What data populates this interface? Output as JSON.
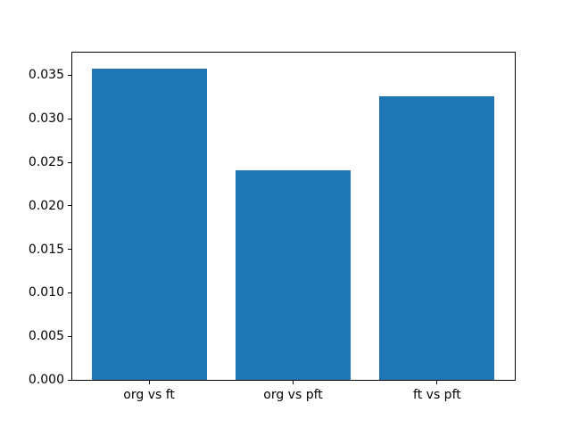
{
  "figure": {
    "background": "#ffffff",
    "spine_color": "#000000",
    "tick_color": "#000000",
    "text_color": "#000000"
  },
  "chart_data": {
    "type": "bar",
    "title": "",
    "xlabel": "",
    "ylabel": "",
    "categories": [
      "org vs ft",
      "org vs pft",
      "ft vs pft"
    ],
    "values": [
      0.0358,
      0.0241,
      0.0326
    ],
    "bar_color": "#1f77b4",
    "bar_width": 0.8,
    "xlim": [
      -0.54,
      2.54
    ],
    "ylim": [
      0,
      0.0377
    ],
    "yticks": [
      0,
      0.005,
      0.01,
      0.015,
      0.02,
      0.025,
      0.03,
      0.035
    ],
    "ytick_labels": [
      "0.000",
      "0.005",
      "0.010",
      "0.015",
      "0.020",
      "0.025",
      "0.030",
      "0.035"
    ],
    "grid": false,
    "legend": false
  }
}
